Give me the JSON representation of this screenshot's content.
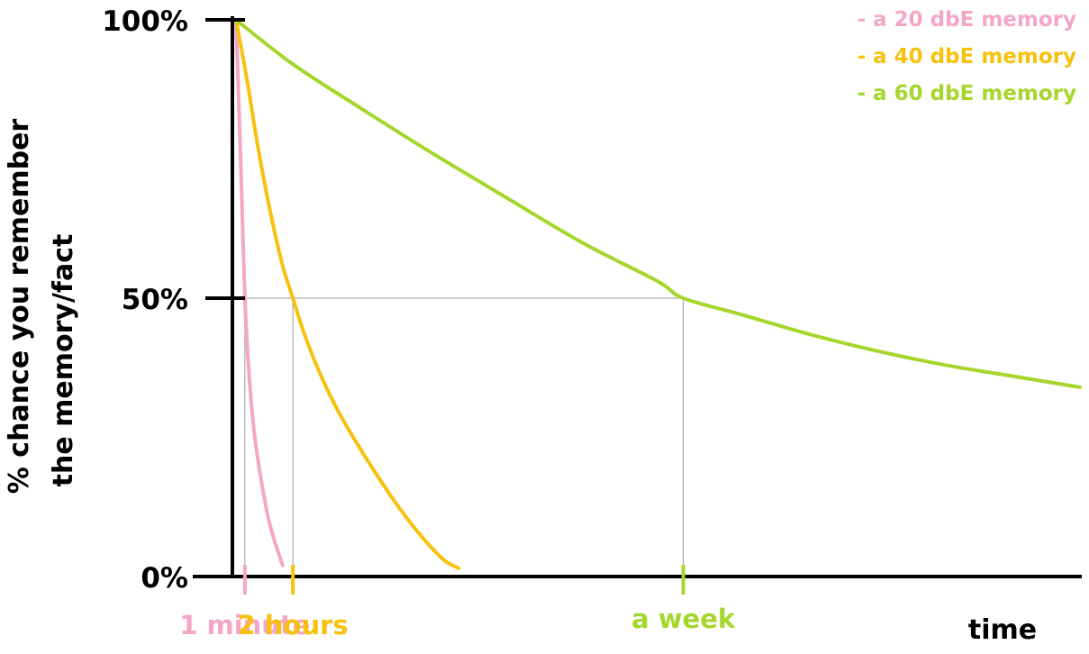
{
  "chart_data": {
    "type": "line",
    "title": "",
    "ylabel_lines": [
      "% chance you remember",
      "the memory/fact"
    ],
    "xlabel": "time",
    "y_ticks": [
      {
        "label": "100%",
        "value": 100
      },
      {
        "label": "50%",
        "value": 50
      },
      {
        "label": "0%",
        "value": 0
      }
    ],
    "ylim": [
      0,
      100
    ],
    "legend_position": "top-right",
    "series": [
      {
        "name": "- a 20 dbE memory",
        "color": "#f4a6c6",
        "points": [
          [
            0,
            100
          ],
          [
            0.0027,
            88
          ],
          [
            0.0055,
            75
          ],
          [
            0.008,
            62
          ],
          [
            0.0105,
            50
          ],
          [
            0.0135,
            41
          ],
          [
            0.0171,
            33
          ],
          [
            0.0215,
            26
          ],
          [
            0.027,
            20
          ],
          [
            0.0325,
            15
          ],
          [
            0.039,
            10
          ],
          [
            0.0465,
            6
          ],
          [
            0.0553,
            2
          ]
        ]
      },
      {
        "name": "- a 40 dbE memory",
        "color": "#f7c10e",
        "points": [
          [
            0,
            100
          ],
          [
            0.0133,
            89
          ],
          [
            0.0262,
            77
          ],
          [
            0.04,
            66
          ],
          [
            0.055,
            56
          ],
          [
            0.0674,
            50
          ],
          [
            0.08,
            44
          ],
          [
            0.098,
            37
          ],
          [
            0.12,
            30
          ],
          [
            0.143,
            24
          ],
          [
            0.168,
            18
          ],
          [
            0.195,
            12
          ],
          [
            0.221,
            7
          ],
          [
            0.246,
            3
          ],
          [
            0.2639,
            1.5
          ]
        ]
      },
      {
        "name": "- a 60 dbE memory",
        "color": "#a5d62c",
        "points": [
          [
            0,
            100
          ],
          [
            0.0677,
            92
          ],
          [
            0.149,
            84
          ],
          [
            0.233,
            76
          ],
          [
            0.321,
            68
          ],
          [
            0.41,
            60
          ],
          [
            0.5,
            53
          ],
          [
            0.53,
            50
          ],
          [
            0.6,
            47
          ],
          [
            0.68,
            43.5
          ],
          [
            0.76,
            40.5
          ],
          [
            0.84,
            38
          ],
          [
            0.92,
            36
          ],
          [
            1.0,
            34
          ]
        ]
      }
    ],
    "x_markers": [
      {
        "label": "1 minute",
        "x": 0.0105,
        "color": "#f4a6c6"
      },
      {
        "label": "2 hours",
        "x": 0.0674,
        "color": "#f7c10e"
      },
      {
        "label": "a week",
        "x": 0.53,
        "color": "#a5d62c"
      }
    ],
    "half_life_line": {
      "value": 50,
      "color": "#9a9a9a"
    },
    "axis_color": "#000000"
  }
}
